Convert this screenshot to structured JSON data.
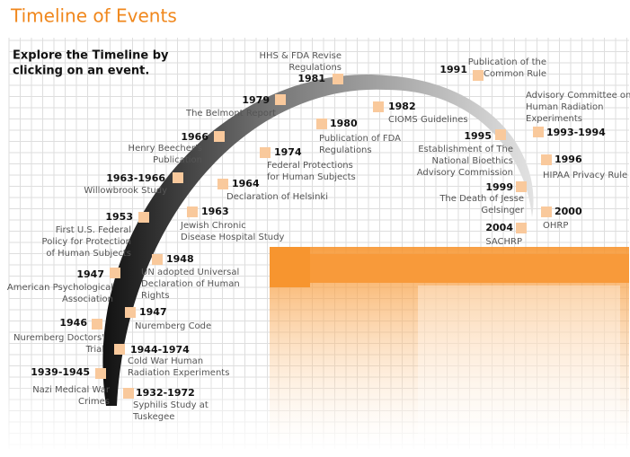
{
  "title": "Timeline of Events",
  "instruction": [
    "Explore the Timeline by",
    "clicking on an event."
  ],
  "events": [
    {
      "year": "1932-1972",
      "label": [
        "Syphilis Study at",
        "Tuskegee"
      ]
    },
    {
      "year": "1939-1945",
      "label": [
        "Nazi Medical War",
        "Crimes"
      ]
    },
    {
      "year": "1944-1974",
      "label": [
        "Cold War Human",
        "Radiation Experiments"
      ]
    },
    {
      "year": "1946",
      "label": [
        "Nuremberg Doctors'",
        "Trial"
      ]
    },
    {
      "year": "1947",
      "label": [
        "Nuremberg Code"
      ]
    },
    {
      "year": "1947",
      "label": [
        "American Psychological",
        "Association"
      ]
    },
    {
      "year": "1948",
      "label": [
        "UN adopted Universal",
        "Declaration of Human",
        "Rights"
      ]
    },
    {
      "year": "1953",
      "label": [
        "First U.S. Federal",
        "Policy for Protection",
        "of Human Subjects"
      ]
    },
    {
      "year": "1963",
      "label": [
        "Jewish Chronic",
        "Disease Hospital Study"
      ]
    },
    {
      "year": "1963-1966",
      "label": [
        "Willowbrook Study"
      ]
    },
    {
      "year": "1964",
      "label": [
        "Declaration of Helsinki"
      ]
    },
    {
      "year": "1966",
      "label": [
        "Henry Beecher's",
        "Publication"
      ]
    },
    {
      "year": "1974",
      "label": [
        "Federal Protections",
        "for Human Subjects"
      ]
    },
    {
      "year": "1979",
      "label": [
        "The Belmont Report"
      ]
    },
    {
      "year": "1980",
      "label": [
        "Publication of FDA",
        "Regulations"
      ]
    },
    {
      "year": "1981",
      "label": [
        "HHS & FDA Revise",
        "Regulations"
      ]
    },
    {
      "year": "1982",
      "label": [
        "CIOMS Guidelines"
      ]
    },
    {
      "year": "1991",
      "label": [
        "Publication of the",
        "Common Rule"
      ]
    },
    {
      "year": "1993-1994",
      "label": [
        "Advisory Committee on",
        "Human Radiation",
        "Experiments"
      ]
    },
    {
      "year": "1995",
      "label": [
        "Establishment of The",
        "National Bioethics",
        "Advisory Commission"
      ]
    },
    {
      "year": "1996",
      "label": [
        "HIPAA Privacy Rule"
      ]
    },
    {
      "year": "1999",
      "label": [
        "The Death of Jesse",
        "Gelsinger"
      ]
    },
    {
      "year": "2000",
      "label": [
        "OHRP"
      ]
    },
    {
      "year": "2004",
      "label": [
        "SACHRP"
      ]
    }
  ]
}
